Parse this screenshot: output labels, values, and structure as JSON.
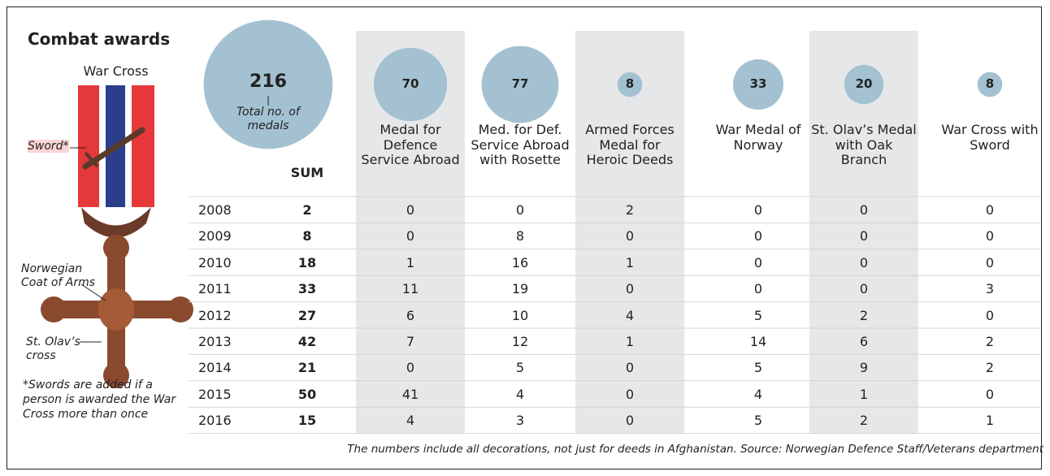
{
  "title": "Combat awards",
  "medal": {
    "name": "War Cross",
    "labels": [
      "Sword*",
      "Norwegian Coat of Arms",
      "St. Olav’s cross"
    ],
    "note": "*Swords are added if a person is awarded the War Cross more than once"
  },
  "total": {
    "value": 216,
    "label": "Total no. of medals",
    "color": "#a3c1d1"
  },
  "table": {
    "sum_header": "SUM",
    "columns": [
      {
        "name": "Medal for Defence Service Abroad",
        "total": 70,
        "shaded": true
      },
      {
        "name": "Med. for Def. Service Abroad with Rosette",
        "total": 77,
        "shaded": false
      },
      {
        "name": "Armed Forces Medal for Heroic Deeds",
        "total": 8,
        "shaded": true
      },
      {
        "name": "War Medal of Norway",
        "total": 33,
        "shaded": false
      },
      {
        "name": "St. Olav’s Medal with Oak Branch",
        "total": 20,
        "shaded": true
      },
      {
        "name": "War Cross with Sword",
        "total": 8,
        "shaded": false
      }
    ],
    "rows": [
      {
        "year": "2008",
        "sum": 2,
        "values": [
          0,
          0,
          2,
          0,
          0,
          0
        ]
      },
      {
        "year": "2009",
        "sum": 8,
        "values": [
          0,
          8,
          0,
          0,
          0,
          0
        ]
      },
      {
        "year": "2010",
        "sum": 18,
        "values": [
          1,
          16,
          1,
          0,
          0,
          0
        ]
      },
      {
        "year": "2011",
        "sum": 33,
        "values": [
          11,
          19,
          0,
          0,
          0,
          3
        ]
      },
      {
        "year": "2012",
        "sum": 27,
        "values": [
          6,
          10,
          4,
          5,
          2,
          0
        ]
      },
      {
        "year": "2013",
        "sum": 42,
        "values": [
          7,
          12,
          1,
          14,
          6,
          2
        ]
      },
      {
        "year": "2014",
        "sum": 21,
        "values": [
          0,
          5,
          0,
          5,
          9,
          2
        ]
      },
      {
        "year": "2015",
        "sum": 50,
        "values": [
          41,
          4,
          0,
          4,
          1,
          0
        ]
      },
      {
        "year": "2016",
        "sum": 15,
        "values": [
          4,
          3,
          0,
          5,
          2,
          1
        ]
      }
    ]
  },
  "footnote": "The numbers include all decorations, not just for deeds in Afghanistan. Source: Norwegian Defence Staff/Veterans department"
}
